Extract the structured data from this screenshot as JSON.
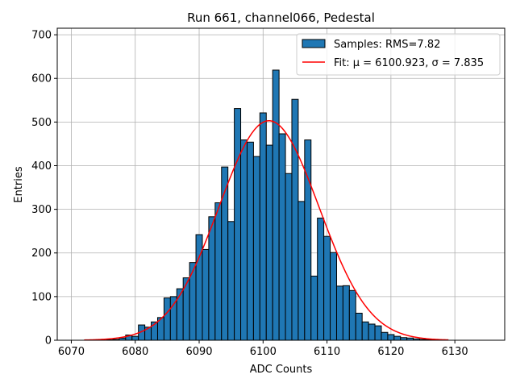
{
  "chart_data": {
    "type": "bar",
    "title": "Run 661, channel066, Pedestal",
    "xlabel": "ADC Counts",
    "ylabel": "Entries",
    "xlim": [
      6067.8,
      6137.8
    ],
    "ylim": [
      0,
      715
    ],
    "xticks": [
      6070,
      6080,
      6090,
      6100,
      6110,
      6120,
      6130
    ],
    "yticks": [
      0,
      100,
      200,
      300,
      400,
      500,
      600,
      700
    ],
    "grid": true,
    "bin_width": 1,
    "bins": [
      6072,
      6073,
      6074,
      6075,
      6076,
      6077,
      6078,
      6079,
      6080,
      6081,
      6082,
      6083,
      6084,
      6085,
      6086,
      6087,
      6088,
      6089,
      6090,
      6091,
      6092,
      6093,
      6094,
      6095,
      6096,
      6097,
      6098,
      6099,
      6100,
      6101,
      6102,
      6103,
      6104,
      6105,
      6106,
      6107,
      6108,
      6109,
      6110,
      6111,
      6112,
      6113,
      6114,
      6115,
      6116,
      6117,
      6118,
      6119,
      6120,
      6121,
      6122,
      6123,
      6124,
      6125,
      6126,
      6127,
      6128
    ],
    "values": [
      0,
      0,
      0,
      0,
      1,
      2,
      5,
      12,
      9,
      35,
      30,
      42,
      52,
      97,
      100,
      118,
      143,
      178,
      242,
      208,
      283,
      315,
      397,
      272,
      531,
      459,
      454,
      421,
      521,
      447,
      619,
      473,
      382,
      552,
      318,
      459,
      147,
      280,
      238,
      201,
      124,
      125,
      114,
      62,
      42,
      37,
      33,
      18,
      13,
      9,
      6,
      5,
      3,
      2,
      1,
      0,
      0
    ],
    "fit": {
      "name": "Fit",
      "mu": 6100.923,
      "sigma": 7.835,
      "amplitude": 503,
      "x_range": [
        6072,
        6129
      ]
    },
    "legend": {
      "location": "top-right",
      "entries": [
        {
          "label": "Samples: RMS=7.82",
          "kind": "patch"
        },
        {
          "label": "Fit: μ = 6100.923, σ = 7.835",
          "kind": "line"
        }
      ]
    },
    "colors": {
      "bar": "#1f77b4",
      "bar_edge": "#000000",
      "fit": "#ff0000"
    }
  }
}
